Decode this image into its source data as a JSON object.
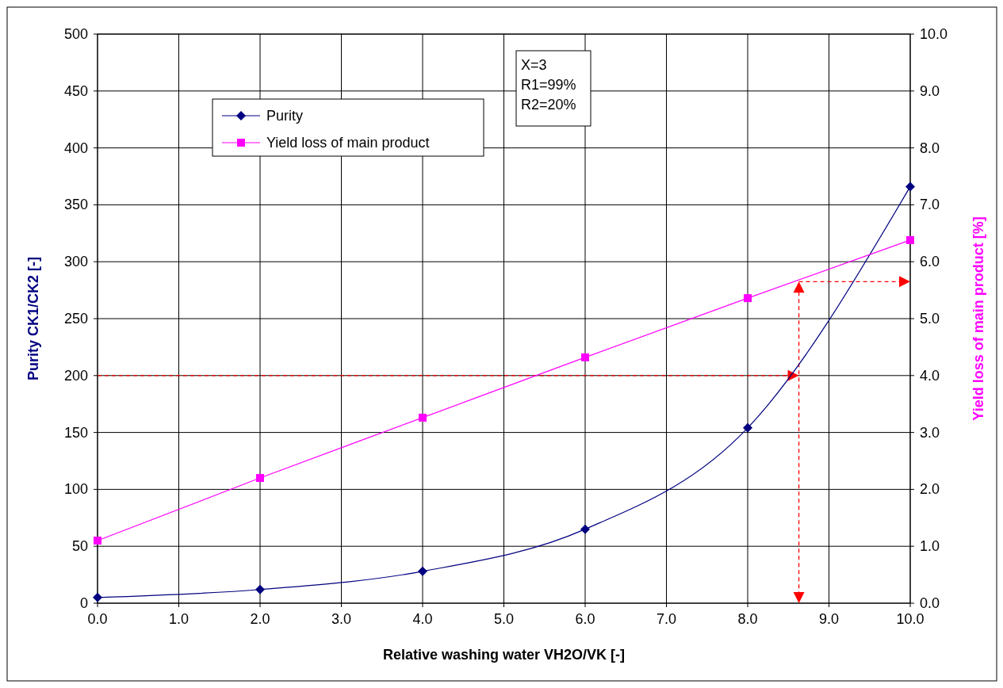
{
  "chart_data": {
    "type": "line",
    "xlabel": "Relative washing water VH2O/VK [-]",
    "ylabel": "Purity CK1/CK2 [-]",
    "y2label": "Yield loss of main product [%]",
    "x": [
      0,
      2,
      4,
      6,
      8,
      10
    ],
    "series": [
      {
        "name": "Purity",
        "color": "#000080",
        "marker": "diamond",
        "values": [
          5,
          12,
          28,
          65,
          154,
          366
        ]
      },
      {
        "name": "Yield loss of main product",
        "color": "#ff00ff",
        "marker": "square",
        "axis": "y2",
        "values": [
          1.1,
          2.2,
          3.26,
          4.32,
          5.36,
          6.38
        ]
      }
    ],
    "xlim": [
      0,
      10
    ],
    "xticks": [
      {
        "value": 0,
        "label": "0.0"
      },
      {
        "value": 1,
        "label": "1.0"
      },
      {
        "value": 2,
        "label": "2.0"
      },
      {
        "value": 3,
        "label": "3.0"
      },
      {
        "value": 4,
        "label": "4.0"
      },
      {
        "value": 5,
        "label": "5.0"
      },
      {
        "value": 6,
        "label": "6.0"
      },
      {
        "value": 7,
        "label": "7.0"
      },
      {
        "value": 8,
        "label": "8.0"
      },
      {
        "value": 9,
        "label": "9.0"
      },
      {
        "value": 10,
        "label": "10.0"
      }
    ],
    "ylim": [
      0,
      500
    ],
    "yticks": [
      0,
      50,
      100,
      150,
      200,
      250,
      300,
      350,
      400,
      450,
      500
    ],
    "y2lim": [
      0,
      10
    ],
    "y2ticks": [
      {
        "value": 0,
        "label": "0.0"
      },
      {
        "value": 1,
        "label": "1.0"
      },
      {
        "value": 2,
        "label": "2.0"
      },
      {
        "value": 3,
        "label": "3.0"
      },
      {
        "value": 4,
        "label": "4.0"
      },
      {
        "value": 5,
        "label": "5.0"
      },
      {
        "value": 6,
        "label": "6.0"
      },
      {
        "value": 7,
        "label": "7.0"
      },
      {
        "value": 8,
        "label": "8.0"
      },
      {
        "value": 9,
        "label": "9.0"
      },
      {
        "value": 10,
        "label": "10.0"
      }
    ],
    "ref_lines": [
      {
        "axis": "y",
        "value": 200,
        "color": "#ff0000",
        "line_style": "dashed"
      },
      {
        "axis": "x",
        "value": 8.63,
        "color": "#ff0000",
        "line_style": "dashed"
      },
      {
        "axis": "y2",
        "value": 5.65,
        "color": "#ff0000",
        "line_style": "dashed"
      }
    ],
    "annotations": [
      "X=3",
      "R1=99%",
      "R2=20%"
    ],
    "grid": true,
    "legend": "top left"
  }
}
